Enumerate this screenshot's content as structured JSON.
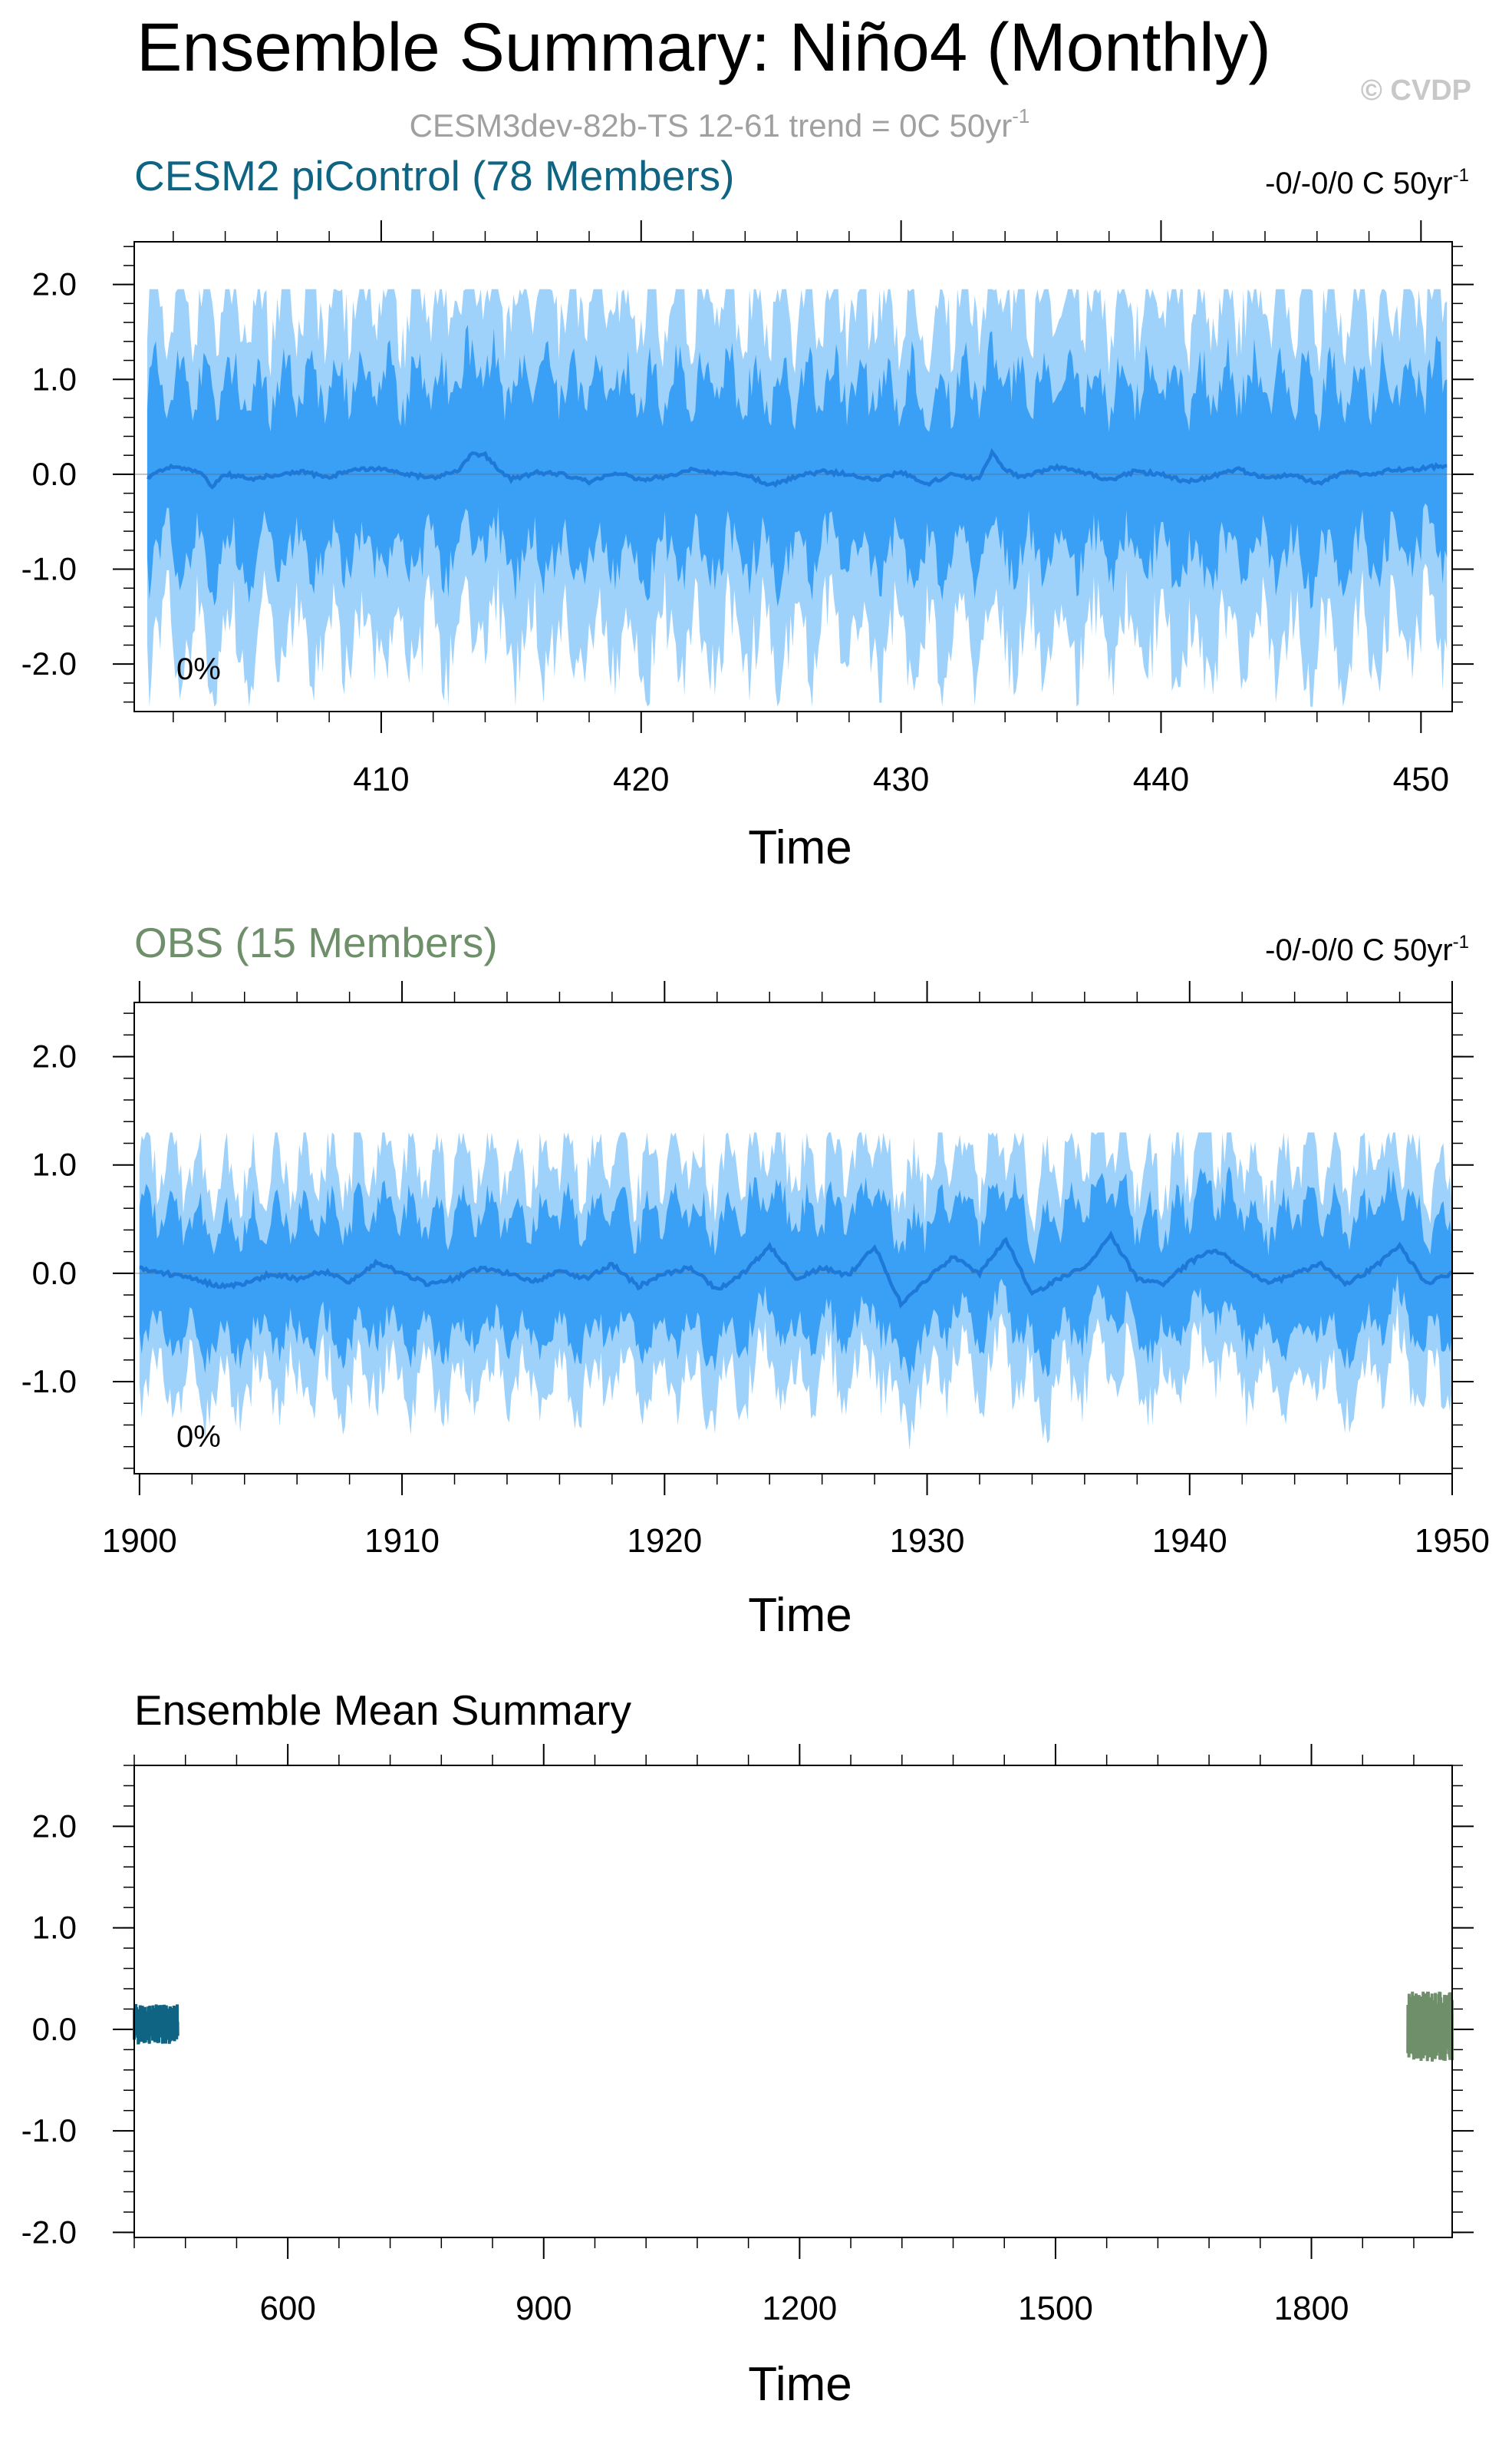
{
  "title": "Ensemble Summary: Niño4 (Monthly)",
  "subtitle": "CESM3dev-82b-TS 12-61 trend = 0C 50yr",
  "subtitle_sup": "-1",
  "watermark": "© CVDP",
  "colors": {
    "cesm": "#0e6482",
    "obs": "#6e8f6a",
    "band_outer": "#9fd2fb",
    "band_inner": "#3aa0f6",
    "mean_line": "#1e78d8",
    "axis": "#000000",
    "subtitle": "#a0a0a0"
  },
  "chart_data": [
    {
      "type": "area",
      "panel_title": "CESM2 piControl (78 Members)",
      "trend_label": "-0/-0/0 C 50yr",
      "trend_sup": "-1",
      "pct_label": "0%",
      "xlabel": "Time",
      "ylabel": "",
      "xlim": [
        400.5,
        451.2
      ],
      "ylim": [
        -2.5,
        2.45
      ],
      "xticks": [
        410,
        420,
        430,
        440,
        450
      ],
      "xticklabels": [
        "410",
        "420",
        "430",
        "440",
        "450"
      ],
      "yticks": [
        2.0,
        1.0,
        0.0,
        -1.0,
        -2.0
      ],
      "yticklabels": [
        "2.0",
        "1.0",
        "0.0",
        "-1.0",
        "-2.0"
      ],
      "x_start": 401.0,
      "x_end": 451.0,
      "mean_x": [
        401,
        402,
        403,
        403.5,
        404,
        405,
        406,
        407,
        408,
        409,
        410,
        411,
        412,
        413,
        413.5,
        414,
        414.5,
        415,
        416,
        417,
        418,
        419,
        420,
        421,
        422,
        423,
        424,
        425,
        426,
        427,
        428,
        429,
        430,
        431,
        432,
        433,
        433.5,
        434,
        434.5,
        435,
        436,
        437,
        438,
        439,
        440,
        441,
        442,
        443,
        444,
        445,
        446,
        447,
        448,
        449,
        450,
        451
      ],
      "mean_y": [
        -0.03,
        0.08,
        0.02,
        -0.12,
        0.0,
        -0.05,
        0.0,
        0.02,
        -0.03,
        0.06,
        0.05,
        0.0,
        -0.04,
        0.05,
        0.22,
        0.2,
        0.05,
        -0.05,
        0.02,
        0.0,
        -0.08,
        0.02,
        -0.06,
        -0.02,
        0.05,
        0.0,
        0.0,
        -0.12,
        -0.02,
        0.03,
        0.0,
        -0.05,
        0.02,
        -0.1,
        0.0,
        -0.05,
        0.22,
        0.06,
        -0.02,
        0.0,
        0.08,
        0.02,
        -0.06,
        0.03,
        0.0,
        -0.08,
        -0.02,
        0.05,
        -0.04,
        0.0,
        -0.1,
        0.02,
        0.0,
        0.05,
        0.06,
        0.1
      ],
      "inner_band": [
        -0.85,
        0.95
      ],
      "outer_band": [
        -1.75,
        1.8
      ],
      "extremes": {
        "max": 1.95,
        "min": -2.45
      }
    },
    {
      "type": "area",
      "panel_title": "OBS (15 Members)",
      "trend_label": "-0/-0/0 C 50yr",
      "trend_sup": "-1",
      "pct_label": "0%",
      "xlabel": "Time",
      "ylabel": "",
      "xlim": [
        1899.8,
        1950.0
      ],
      "ylim": [
        -1.85,
        2.5
      ],
      "xticks": [
        1900,
        1910,
        1920,
        1930,
        1940,
        1950
      ],
      "xticklabels": [
        "1900",
        "1910",
        "1920",
        "1930",
        "1940",
        "1950"
      ],
      "yticks": [
        2.0,
        1.0,
        0.0,
        -1.0
      ],
      "yticklabels": [
        "2.0",
        "1.0",
        "0.0",
        "-1.0"
      ],
      "x_start": 1900.0,
      "x_end": 1950.0,
      "mean_x": [
        1900,
        1901,
        1902,
        1903,
        1904,
        1905,
        1906,
        1907,
        1908,
        1909,
        1910,
        1911,
        1912,
        1913,
        1914,
        1915,
        1916,
        1917,
        1918,
        1919,
        1920,
        1921,
        1922,
        1923,
        1924,
        1925,
        1926,
        1927,
        1928,
        1929,
        1930,
        1931,
        1932,
        1933,
        1934,
        1935,
        1936,
        1937,
        1938,
        1939,
        1940,
        1941,
        1942,
        1943,
        1944,
        1945,
        1946,
        1947,
        1948,
        1949,
        1950
      ],
      "mean_y": [
        0.05,
        0.0,
        -0.05,
        -0.12,
        -0.1,
        0.0,
        -0.05,
        0.02,
        -0.08,
        0.1,
        0.0,
        -0.1,
        -0.05,
        0.05,
        0.0,
        -0.08,
        0.02,
        -0.05,
        0.08,
        -0.12,
        0.0,
        0.05,
        -0.15,
        0.0,
        0.25,
        -0.05,
        0.05,
        -0.02,
        0.25,
        -0.28,
        -0.05,
        0.15,
        0.0,
        0.32,
        -0.2,
        -0.05,
        0.05,
        0.35,
        -0.05,
        -0.1,
        0.1,
        0.22,
        0.05,
        -0.1,
        0.0,
        0.08,
        -0.1,
        0.05,
        0.25,
        -0.1,
        0.0
      ],
      "inner_band": [
        -0.55,
        0.55
      ],
      "outer_band": [
        -1.0,
        1.0
      ],
      "extremes": {
        "max": 1.3,
        "min": -1.7
      }
    },
    {
      "type": "line",
      "panel_title": "Ensemble Mean Summary",
      "xlabel": "Time",
      "ylabel": "",
      "xlim": [
        420,
        1965
      ],
      "ylim": [
        -2.05,
        2.6
      ],
      "xticks": [
        600,
        900,
        1200,
        1500,
        1800
      ],
      "xticklabels": [
        "600",
        "900",
        "1200",
        "1500",
        "1800"
      ],
      "yticks": [
        2.0,
        1.0,
        0.0,
        -1.0,
        -2.0
      ],
      "yticklabels": [
        "2.0",
        "1.0",
        "0.0",
        "-1.0",
        "-2.0"
      ],
      "series": [
        {
          "name": "CESM2 piControl (78 Members)",
          "x_range": [
            420,
            471
          ],
          "values_range": [
            -0.15,
            0.25
          ]
        },
        {
          "name": "OBS (15 Members)",
          "x_range": [
            1913,
            1965
          ],
          "values_range": [
            -0.32,
            0.38
          ]
        }
      ]
    }
  ]
}
